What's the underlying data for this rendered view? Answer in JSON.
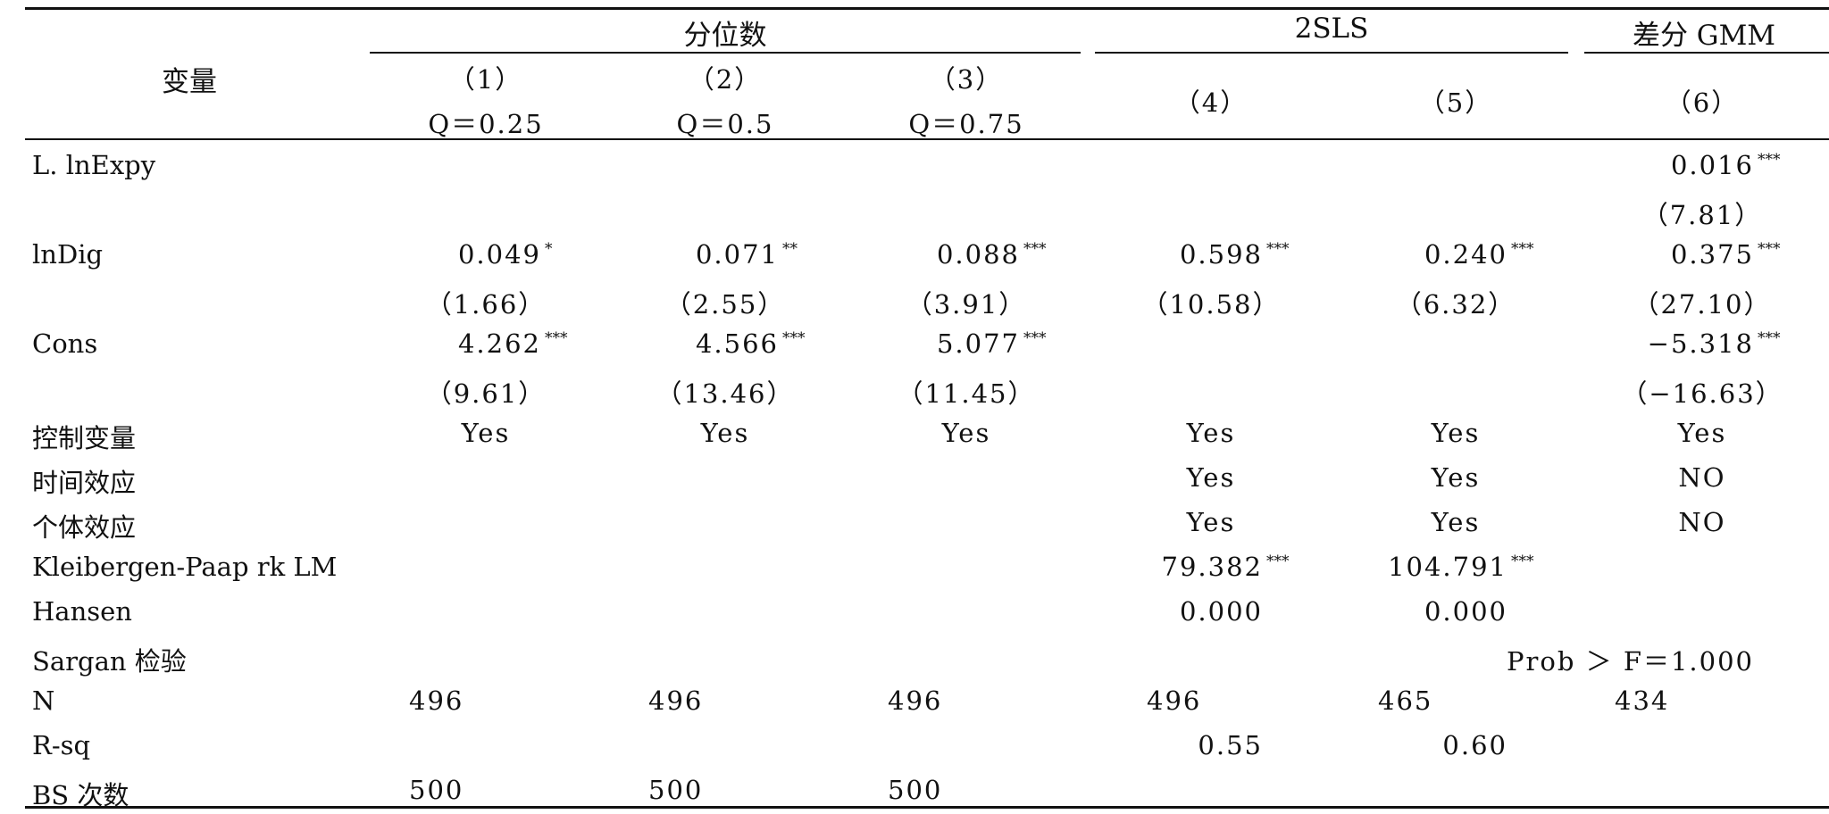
{
  "table": {
    "header": {
      "variable_label": "变量",
      "groups": [
        "分位数",
        "2SLS",
        "差分 GMM"
      ],
      "columns": [
        {
          "num": "（1）",
          "sub": "Q＝0.25"
        },
        {
          "num": "（2）",
          "sub": "Q＝0.5"
        },
        {
          "num": "（3）",
          "sub": "Q＝0.75"
        },
        {
          "num": "（4）",
          "sub": ""
        },
        {
          "num": "（5）",
          "sub": ""
        },
        {
          "num": "（6）",
          "sub": ""
        }
      ]
    },
    "rows": [
      {
        "label": "L. lnExpy",
        "cells": [
          {
            "v": ""
          },
          {
            "v": ""
          },
          {
            "v": ""
          },
          {
            "v": ""
          },
          {
            "v": ""
          },
          {
            "v": "0.016",
            "s": "***"
          }
        ]
      },
      {
        "label": "",
        "cells": [
          {
            "v": ""
          },
          {
            "v": ""
          },
          {
            "v": ""
          },
          {
            "v": ""
          },
          {
            "v": ""
          },
          {
            "v": "（7.81）"
          }
        ]
      },
      {
        "label": "lnDig",
        "cells": [
          {
            "v": "0.049",
            "s": "*"
          },
          {
            "v": "0.071",
            "s": "**"
          },
          {
            "v": "0.088",
            "s": "***"
          },
          {
            "v": "0.598",
            "s": "***"
          },
          {
            "v": "0.240",
            "s": "***"
          },
          {
            "v": "0.375",
            "s": "***"
          }
        ]
      },
      {
        "label": "",
        "cells": [
          {
            "v": "（1.66）"
          },
          {
            "v": "（2.55）"
          },
          {
            "v": "（3.91）"
          },
          {
            "v": "（10.58）"
          },
          {
            "v": "（6.32）"
          },
          {
            "v": "（27.10）"
          }
        ]
      },
      {
        "label": "Cons",
        "cells": [
          {
            "v": "4.262",
            "s": "***"
          },
          {
            "v": "4.566",
            "s": "***"
          },
          {
            "v": "5.077",
            "s": "***"
          },
          {
            "v": ""
          },
          {
            "v": ""
          },
          {
            "v": "−5.318",
            "s": "***"
          }
        ]
      },
      {
        "label": "",
        "cells": [
          {
            "v": "（9.61）"
          },
          {
            "v": "（13.46）"
          },
          {
            "v": "（11.45）"
          },
          {
            "v": ""
          },
          {
            "v": ""
          },
          {
            "v": "（−16.63）"
          }
        ]
      },
      {
        "label": "控制变量",
        "cells": [
          {
            "v": "Yes"
          },
          {
            "v": "Yes"
          },
          {
            "v": "Yes"
          },
          {
            "v": "Yes"
          },
          {
            "v": "Yes"
          },
          {
            "v": "Yes"
          }
        ]
      },
      {
        "label": "时间效应",
        "cells": [
          {
            "v": ""
          },
          {
            "v": ""
          },
          {
            "v": ""
          },
          {
            "v": "Yes"
          },
          {
            "v": "Yes"
          },
          {
            "v": "NO"
          }
        ]
      },
      {
        "label": "个体效应",
        "cells": [
          {
            "v": ""
          },
          {
            "v": ""
          },
          {
            "v": ""
          },
          {
            "v": "Yes"
          },
          {
            "v": "Yes"
          },
          {
            "v": "NO"
          }
        ]
      },
      {
        "label": "Kleibergen-Paap rk LM",
        "cells": [
          {
            "v": ""
          },
          {
            "v": ""
          },
          {
            "v": ""
          },
          {
            "v": "79.382",
            "s": "***"
          },
          {
            "v": "104.791",
            "s": "***"
          },
          {
            "v": ""
          }
        ]
      },
      {
        "label": "Hansen",
        "cells": [
          {
            "v": ""
          },
          {
            "v": ""
          },
          {
            "v": ""
          },
          {
            "v": "0.000"
          },
          {
            "v": "0.000"
          },
          {
            "v": ""
          }
        ]
      },
      {
        "label": "Sargan 检验",
        "cells": [
          {
            "v": ""
          },
          {
            "v": ""
          },
          {
            "v": ""
          },
          {
            "v": ""
          },
          {
            "v": ""
          },
          {
            "v": "Prob ＞ F＝1.000"
          }
        ]
      },
      {
        "label": "N",
        "cells": [
          {
            "v": "496"
          },
          {
            "v": "496"
          },
          {
            "v": "496"
          },
          {
            "v": "496"
          },
          {
            "v": "465"
          },
          {
            "v": "434"
          }
        ]
      },
      {
        "label": "R-sq",
        "cells": [
          {
            "v": ""
          },
          {
            "v": ""
          },
          {
            "v": ""
          },
          {
            "v": "0.55"
          },
          {
            "v": "0.60"
          },
          {
            "v": ""
          }
        ]
      },
      {
        "label": "BS 次数",
        "cells": [
          {
            "v": "500"
          },
          {
            "v": "500"
          },
          {
            "v": "500"
          },
          {
            "v": ""
          },
          {
            "v": ""
          },
          {
            "v": ""
          }
        ]
      }
    ]
  }
}
